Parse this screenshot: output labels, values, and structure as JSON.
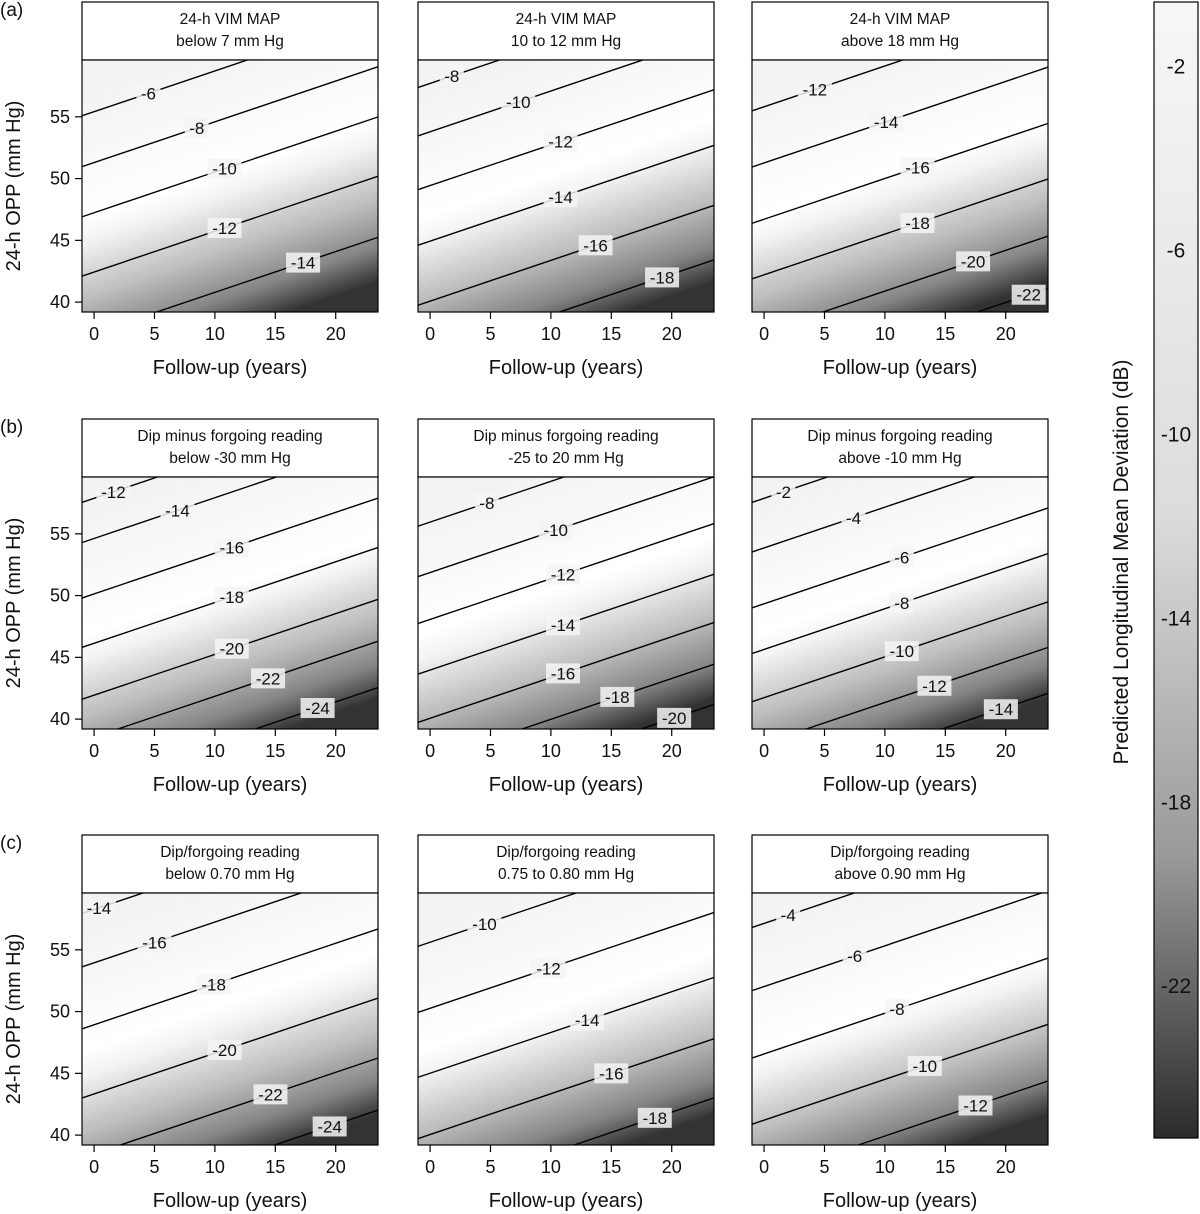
{
  "legend": {
    "title": "Predicted Longitudinal  Mean Deviation (dB)",
    "ticks": [
      "-2",
      "-6",
      "-10",
      "-14",
      "-18",
      "-22"
    ],
    "placement": "right",
    "colors": {
      "light": "#f7f7f7",
      "dark": "#2b2b2b",
      "contour_line": "#000000"
    }
  },
  "chart_data": {
    "type": "heatmap",
    "subtype": "contour",
    "xlabel": "Follow-up (years)",
    "ylabel": "24-h OPP (mm Hg)",
    "xlim": [
      -1,
      23.5
    ],
    "ylim": [
      39.2,
      59.6
    ],
    "xticks": [
      "0",
      "5",
      "10",
      "15",
      "20"
    ],
    "yticks": [
      "40",
      "45",
      "50",
      "55"
    ],
    "rows": [
      {
        "label": "(a)",
        "panels": [
          {
            "strip": [
              "24-h VIM MAP",
              "below 7 mm Hg"
            ],
            "contours": [
              {
                "label": "-6",
                "at": [
                  4.5,
                  56.9
                ]
              },
              {
                "label": "-8",
                "at": [
                  8.5,
                  54.1
                ]
              },
              {
                "label": "-10",
                "at": [
                  10.8,
                  50.8
                ]
              },
              {
                "label": "-12",
                "at": [
                  10.8,
                  46.0
                ]
              },
              {
                "label": "-14",
                "at": [
                  17.3,
                  43.2
                ]
              }
            ]
          },
          {
            "strip": [
              "24-h VIM MAP",
              "10 to 12 mm Hg"
            ],
            "contours": [
              {
                "label": "-8",
                "at": [
                  1.8,
                  58.3
                ]
              },
              {
                "label": "-10",
                "at": [
                  7.3,
                  56.2
                ]
              },
              {
                "label": "-12",
                "at": [
                  10.8,
                  53.0
                ]
              },
              {
                "label": "-14",
                "at": [
                  10.8,
                  48.5
                ]
              },
              {
                "label": "-16",
                "at": [
                  13.7,
                  44.6
                ]
              },
              {
                "label": "-18",
                "at": [
                  19.2,
                  42.0
                ]
              }
            ]
          },
          {
            "strip": [
              "24-h VIM MAP",
              "above 18 mm Hg"
            ],
            "contours": [
              {
                "label": "-12",
                "at": [
                  4.2,
                  57.2
                ]
              },
              {
                "label": "-14",
                "at": [
                  10.1,
                  54.6
                ]
              },
              {
                "label": "-16",
                "at": [
                  12.7,
                  50.9
                ]
              },
              {
                "label": "-18",
                "at": [
                  12.7,
                  46.4
                ]
              },
              {
                "label": "-20",
                "at": [
                  17.3,
                  43.3
                ]
              },
              {
                "label": "-22",
                "at": [
                  21.9,
                  40.6
                ]
              }
            ]
          }
        ]
      },
      {
        "label": "(b)",
        "panels": [
          {
            "strip": [
              "Dip minus forgoing reading",
              "below -30 mm Hg"
            ],
            "contours": [
              {
                "label": "-12",
                "at": [
                  1.6,
                  58.4
                ]
              },
              {
                "label": "-14",
                "at": [
                  6.9,
                  56.9
                ]
              },
              {
                "label": "-16",
                "at": [
                  11.4,
                  53.9
                ]
              },
              {
                "label": "-18",
                "at": [
                  11.4,
                  49.9
                ]
              },
              {
                "label": "-20",
                "at": [
                  11.4,
                  45.7
                ]
              },
              {
                "label": "-22",
                "at": [
                  14.4,
                  43.3
                ]
              },
              {
                "label": "-24",
                "at": [
                  18.5,
                  40.9
                ]
              }
            ]
          },
          {
            "strip": [
              "Dip minus forgoing reading",
              "-25 to 20 mm Hg"
            ],
            "contours": [
              {
                "label": "-8",
                "at": [
                  4.7,
                  57.5
                ]
              },
              {
                "label": "-10",
                "at": [
                  10.4,
                  55.3
                ]
              },
              {
                "label": "-12",
                "at": [
                  11.0,
                  51.7
                ]
              },
              {
                "label": "-14",
                "at": [
                  11.0,
                  47.6
                ]
              },
              {
                "label": "-16",
                "at": [
                  11.0,
                  43.7
                ]
              },
              {
                "label": "-18",
                "at": [
                  15.5,
                  41.8
                ]
              },
              {
                "label": "-20",
                "at": [
                  20.2,
                  40.1
                ]
              }
            ]
          },
          {
            "strip": [
              "Dip minus forgoing reading",
              "above -10 mm Hg"
            ],
            "contours": [
              {
                "label": "-2",
                "at": [
                  1.6,
                  58.4
                ]
              },
              {
                "label": "-4",
                "at": [
                  7.4,
                  56.3
                ]
              },
              {
                "label": "-6",
                "at": [
                  11.4,
                  53.1
                ]
              },
              {
                "label": "-8",
                "at": [
                  11.4,
                  49.4
                ]
              },
              {
                "label": "-10",
                "at": [
                  11.4,
                  45.5
                ]
              },
              {
                "label": "-12",
                "at": [
                  14.1,
                  42.7
                ]
              },
              {
                "label": "-14",
                "at": [
                  19.6,
                  40.8
                ]
              }
            ]
          }
        ]
      },
      {
        "label": "(c)",
        "panels": [
          {
            "strip": [
              "Dip/forgoing reading",
              "below 0.70 mm Hg"
            ],
            "contours": [
              {
                "label": "-14",
                "at": [
                  0.4,
                  58.4
                ]
              },
              {
                "label": "-16",
                "at": [
                  5.0,
                  55.6
                ]
              },
              {
                "label": "-18",
                "at": [
                  9.9,
                  52.2
                ]
              },
              {
                "label": "-20",
                "at": [
                  10.8,
                  46.9
                ]
              },
              {
                "label": "-22",
                "at": [
                  14.6,
                  43.3
                ]
              },
              {
                "label": "-24",
                "at": [
                  19.5,
                  40.7
                ]
              }
            ]
          },
          {
            "strip": [
              "Dip/forgoing reading",
              "0.75 to 0.80 mm Hg"
            ],
            "contours": [
              {
                "label": "-10",
                "at": [
                  4.5,
                  57.1
                ]
              },
              {
                "label": "-12",
                "at": [
                  9.8,
                  53.5
                ]
              },
              {
                "label": "-14",
                "at": [
                  13.0,
                  49.3
                ]
              },
              {
                "label": "-16",
                "at": [
                  15.0,
                  45.0
                ]
              },
              {
                "label": "-18",
                "at": [
                  18.6,
                  41.4
                ]
              }
            ]
          },
          {
            "strip": [
              "Dip/forgoing reading",
              "above 0.90 mm Hg"
            ],
            "contours": [
              {
                "label": "-4",
                "at": [
                  2.0,
                  57.8
                ]
              },
              {
                "label": "-6",
                "at": [
                  7.5,
                  54.5
                ]
              },
              {
                "label": "-8",
                "at": [
                  11.0,
                  50.2
                ]
              },
              {
                "label": "-10",
                "at": [
                  13.3,
                  45.6
                ]
              },
              {
                "label": "-12",
                "at": [
                  17.5,
                  42.4
                ]
              }
            ]
          }
        ]
      }
    ]
  }
}
